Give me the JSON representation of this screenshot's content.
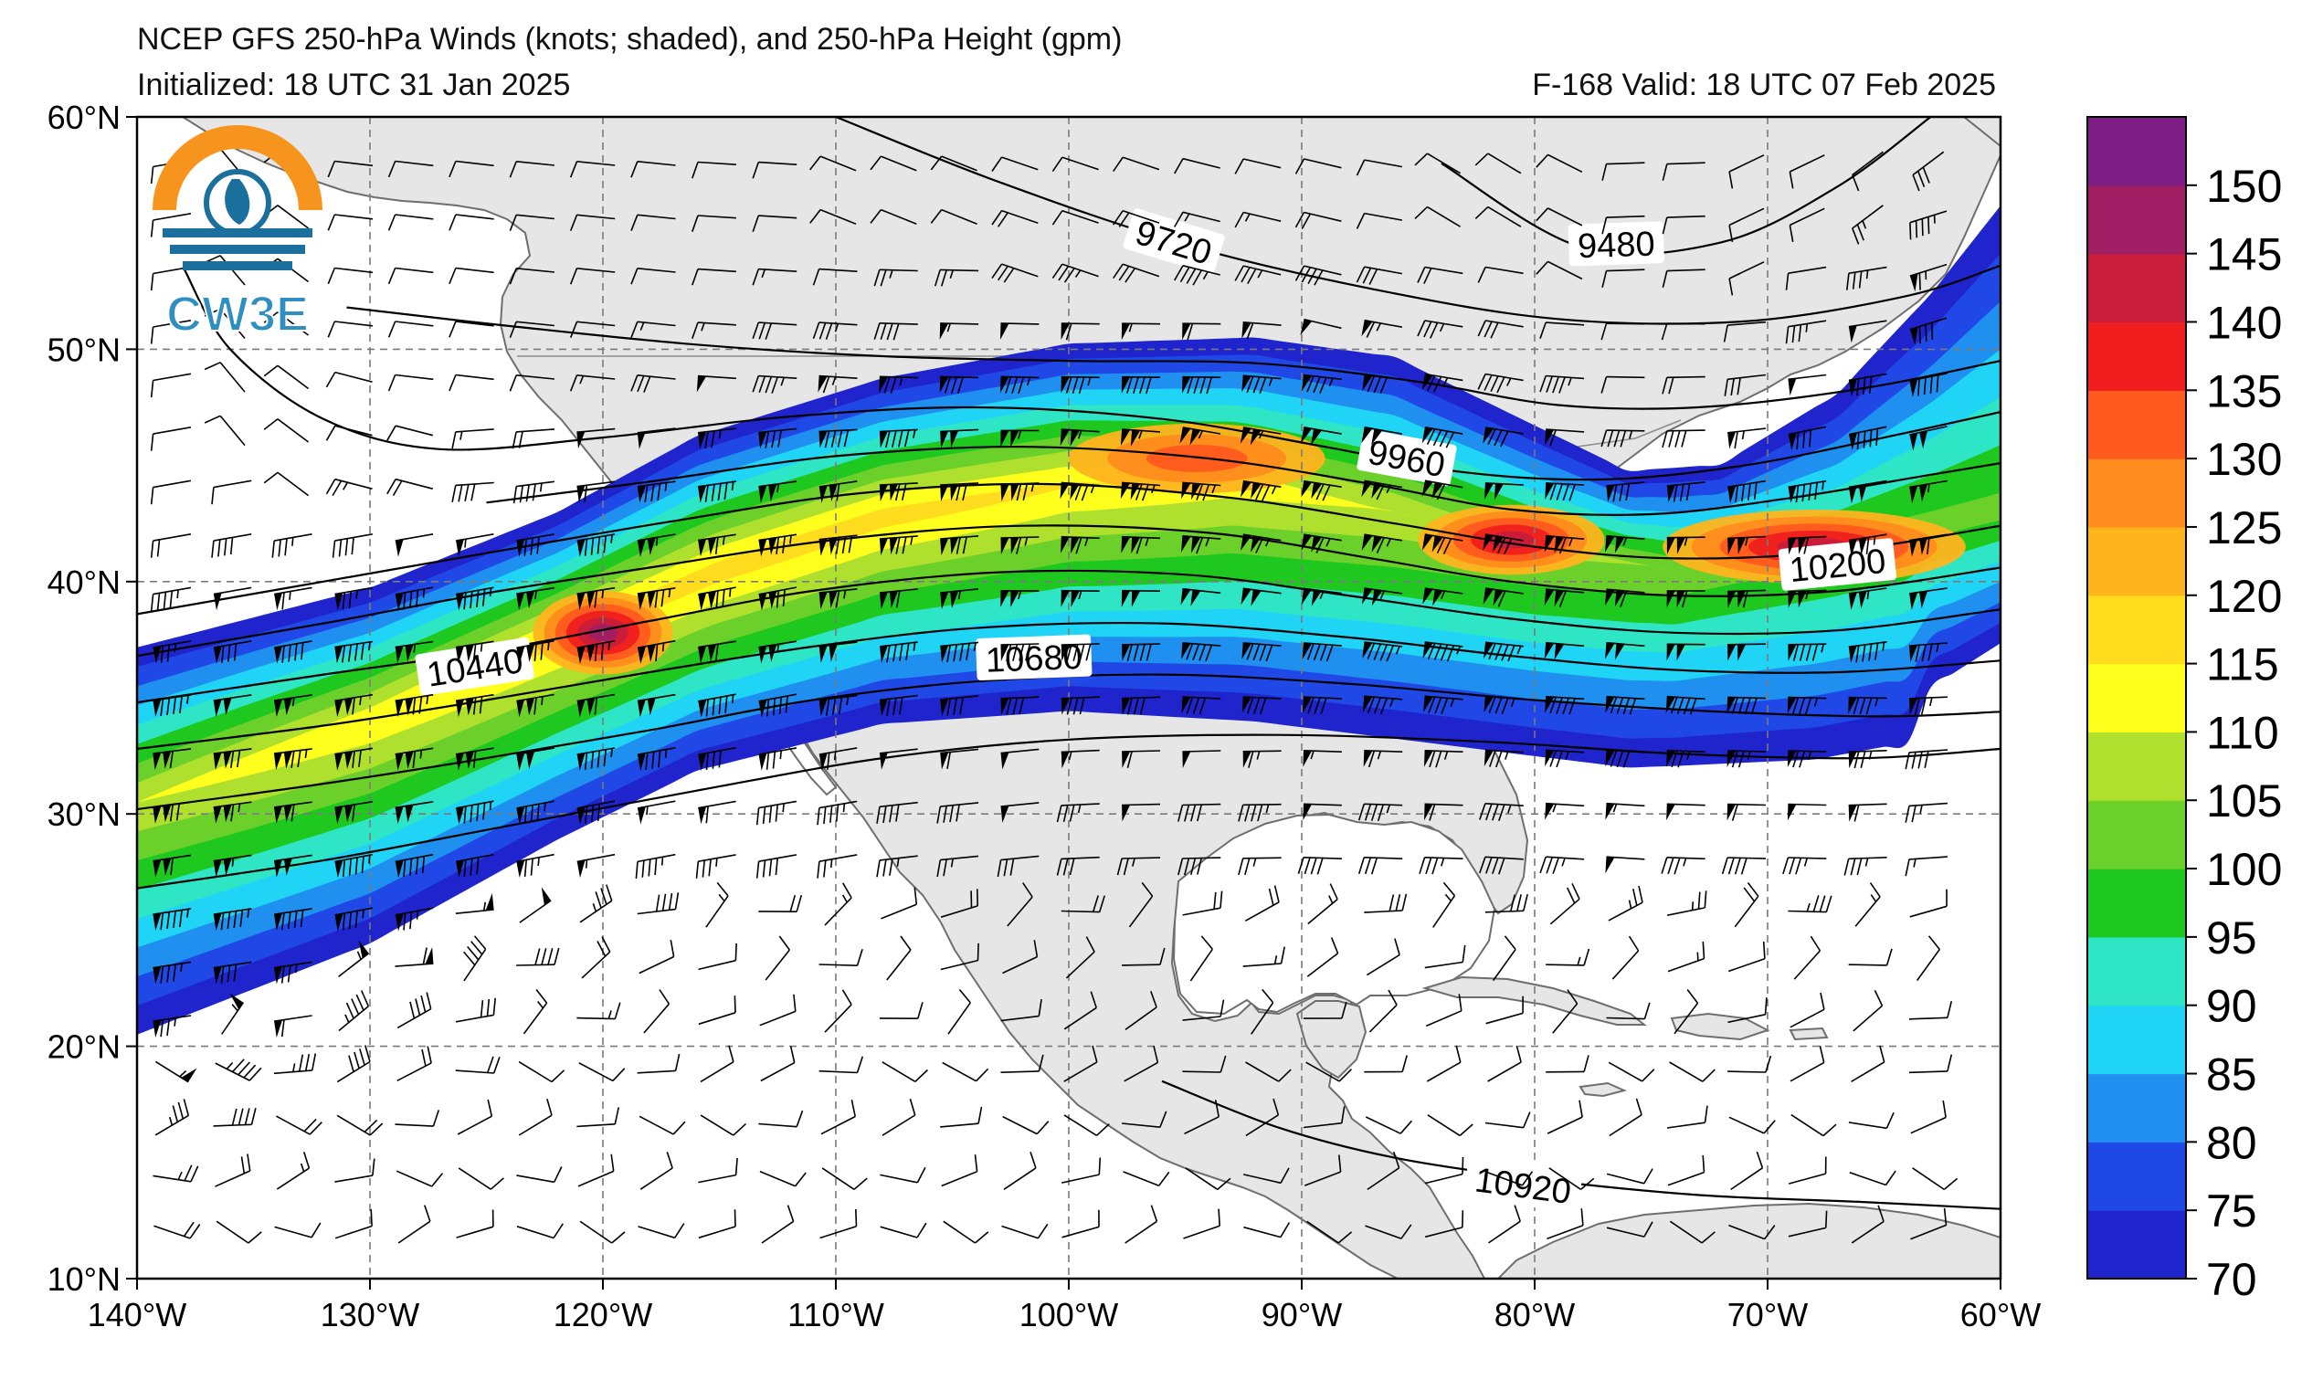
{
  "header": {
    "title": "NCEP GFS 250-hPa Winds (knots; shaded), and 250-hPa Height (gpm)",
    "initialized": "Initialized: 18 UTC 31 Jan 2025",
    "valid": "F-168  Valid: 18 UTC 07 Feb 2025"
  },
  "logo": {
    "text": "CW3E",
    "ring_color": "#f7941d",
    "wave_color": "#1b6f9c",
    "text_color": "#2f8fc0"
  },
  "map": {
    "lon_range": [
      -140,
      -60
    ],
    "lat_range": [
      10,
      60
    ],
    "lon_ticks": [
      {
        "lon": -140,
        "label": "140°W"
      },
      {
        "lon": -130,
        "label": "130°W"
      },
      {
        "lon": -120,
        "label": "120°W"
      },
      {
        "lon": -110,
        "label": "110°W"
      },
      {
        "lon": -100,
        "label": "100°W"
      },
      {
        "lon": -90,
        "label": "90°W"
      },
      {
        "lon": -80,
        "label": "80°W"
      },
      {
        "lon": -70,
        "label": "70°W"
      },
      {
        "lon": -60,
        "label": "60°W"
      }
    ],
    "lat_ticks": [
      {
        "lat": 60,
        "label": "60°N"
      },
      {
        "lat": 50,
        "label": "50°N"
      },
      {
        "lat": 40,
        "label": "40°N"
      },
      {
        "lat": 30,
        "label": "30°N"
      },
      {
        "lat": 20,
        "label": "20°N"
      },
      {
        "lat": 10,
        "label": "10°N"
      }
    ],
    "land_color": "#e6e6e6",
    "coast_color": "#6e6e6e",
    "grid": "dashed"
  },
  "colorbar": {
    "levels": [
      70,
      75,
      80,
      85,
      90,
      95,
      100,
      105,
      110,
      115,
      120,
      125,
      130,
      135,
      140,
      145,
      150,
      155
    ],
    "labels": [
      "70",
      "75",
      "80",
      "85",
      "90",
      "95",
      "100",
      "105",
      "110",
      "115",
      "120",
      "125",
      "130",
      "135",
      "140",
      "145",
      "150"
    ],
    "colors": [
      "#1f24cc",
      "#1f48e6",
      "#1f8ff0",
      "#1fd4f5",
      "#2ee6c6",
      "#1ec81e",
      "#6bd12a",
      "#b0e02e",
      "#ffff1e",
      "#ffdc1e",
      "#ffb41e",
      "#ff8c1e",
      "#ff5a1e",
      "#f01e1e",
      "#c81e3c",
      "#a01e64",
      "#7d1e87"
    ]
  },
  "jet_axis": [
    {
      "lon": -140,
      "lat": 30.5
    },
    {
      "lon": -130,
      "lat": 34.0
    },
    {
      "lon": -122,
      "lat": 37.5
    },
    {
      "lon": -115,
      "lat": 40.5
    },
    {
      "lon": -108,
      "lat": 42.8
    },
    {
      "lon": -100,
      "lat": 44.2
    },
    {
      "lon": -93,
      "lat": 44.3
    },
    {
      "lon": -86,
      "lat": 43.0
    },
    {
      "lon": -80,
      "lat": 41.5
    },
    {
      "lon": -74,
      "lat": 40.5
    },
    {
      "lon": -67,
      "lat": 41.5
    },
    {
      "lon": -60,
      "lat": 43.0
    }
  ],
  "jet_north_edge": [
    {
      "lon": -140,
      "lat": 37.5
    },
    {
      "lon": -130,
      "lat": 40.0
    },
    {
      "lon": -122,
      "lat": 43.2
    },
    {
      "lon": -116,
      "lat": 46.5
    },
    {
      "lon": -108,
      "lat": 49.0
    },
    {
      "lon": -100,
      "lat": 50.5
    },
    {
      "lon": -92,
      "lat": 50.8
    },
    {
      "lon": -86,
      "lat": 50.0
    },
    {
      "lon": -80,
      "lat": 47.0
    },
    {
      "lon": -76,
      "lat": 45.0
    },
    {
      "lon": -72,
      "lat": 45.3
    },
    {
      "lon": -67,
      "lat": 48.5
    },
    {
      "lon": -63,
      "lat": 53.0
    },
    {
      "lon": -60,
      "lat": 57.0
    }
  ],
  "jet_south_edge": [
    {
      "lon": -140,
      "lat": 20.0
    },
    {
      "lon": -130,
      "lat": 24.0
    },
    {
      "lon": -122,
      "lat": 28.5
    },
    {
      "lon": -116,
      "lat": 31.5
    },
    {
      "lon": -108,
      "lat": 33.5
    },
    {
      "lon": -100,
      "lat": 34.0
    },
    {
      "lon": -92,
      "lat": 33.5
    },
    {
      "lon": -84,
      "lat": 32.5
    },
    {
      "lon": -76,
      "lat": 31.5
    },
    {
      "lon": -68,
      "lat": 31.8
    },
    {
      "lon": -64,
      "lat": 32.5
    },
    {
      "lon": -63,
      "lat": 35.0
    },
    {
      "lon": -60,
      "lat": 37.0
    }
  ],
  "wind_maxima": [
    {
      "lon": -120,
      "lat": 37.8,
      "rx": 3.0,
      "ry": 1.8,
      "speed": 145
    },
    {
      "lon": -94.5,
      "lat": 45.3,
      "rx": 5.5,
      "ry": 1.5,
      "speed": 130
    },
    {
      "lon": -81,
      "lat": 41.8,
      "rx": 4.0,
      "ry": 1.5,
      "speed": 140
    },
    {
      "lon": -68,
      "lat": 41.5,
      "rx": 6.5,
      "ry": 1.6,
      "speed": 140
    }
  ],
  "height_contours": [
    {
      "value": 9480,
      "label": "9480",
      "label_at": {
        "lon": -76.5,
        "lat": 54.5
      },
      "points": [
        {
          "lon": -84,
          "lat": 58
        },
        {
          "lon": -78,
          "lat": 54.4
        },
        {
          "lon": -72,
          "lat": 54.6
        },
        {
          "lon": -67,
          "lat": 57.0
        },
        {
          "lon": -63,
          "lat": 60
        }
      ]
    },
    {
      "value": 9720,
      "label": "9720",
      "label_at": {
        "lon": -95.5,
        "lat": 54.6
      },
      "points": [
        {
          "lon": -110,
          "lat": 60
        },
        {
          "lon": -103,
          "lat": 57.2
        },
        {
          "lon": -95,
          "lat": 54.5
        },
        {
          "lon": -87,
          "lat": 52.6
        },
        {
          "lon": -79,
          "lat": 51.3
        },
        {
          "lon": -71,
          "lat": 51.2
        },
        {
          "lon": -64,
          "lat": 52.3
        },
        {
          "lon": -60,
          "lat": 53.6
        }
      ]
    },
    {
      "value": 9840,
      "label": "",
      "points": [
        {
          "lon": -131,
          "lat": 51.8
        },
        {
          "lon": -124,
          "lat": 51.0
        },
        {
          "lon": -116,
          "lat": 50.2
        },
        {
          "lon": -108,
          "lat": 49.7
        },
        {
          "lon": -100,
          "lat": 49.5
        },
        {
          "lon": -92,
          "lat": 49.4
        },
        {
          "lon": -85,
          "lat": 48.6
        },
        {
          "lon": -79,
          "lat": 47.6
        },
        {
          "lon": -73,
          "lat": 47.5
        },
        {
          "lon": -66,
          "lat": 48.3
        },
        {
          "lon": -60,
          "lat": 49.5
        }
      ]
    },
    {
      "value": 9960,
      "label": "9960",
      "label_at": {
        "lon": -85.5,
        "lat": 45.3
      },
      "points": [
        {
          "lon": -138,
          "lat": 53.5
        },
        {
          "lon": -136,
          "lat": 50.0
        },
        {
          "lon": -132,
          "lat": 47.0
        },
        {
          "lon": -127,
          "lat": 45.7
        },
        {
          "lon": -120,
          "lat": 46.2
        },
        {
          "lon": -112,
          "lat": 47.1
        },
        {
          "lon": -104,
          "lat": 47.5
        },
        {
          "lon": -96,
          "lat": 47.0
        },
        {
          "lon": -89,
          "lat": 45.8
        },
        {
          "lon": -83,
          "lat": 44.7
        },
        {
          "lon": -77,
          "lat": 44.4
        },
        {
          "lon": -71,
          "lat": 45.0
        },
        {
          "lon": -65,
          "lat": 46.2
        },
        {
          "lon": -60,
          "lat": 47.3
        }
      ]
    },
    {
      "value": 10080,
      "label": "",
      "points": [
        {
          "lon": -125,
          "lat": 43.4
        },
        {
          "lon": -118,
          "lat": 44.3
        },
        {
          "lon": -110,
          "lat": 45.4
        },
        {
          "lon": -102,
          "lat": 45.8
        },
        {
          "lon": -94,
          "lat": 45.3
        },
        {
          "lon": -87,
          "lat": 44.2
        },
        {
          "lon": -81,
          "lat": 43.1
        },
        {
          "lon": -75,
          "lat": 42.9
        },
        {
          "lon": -69,
          "lat": 43.6
        },
        {
          "lon": -63,
          "lat": 44.6
        },
        {
          "lon": -60,
          "lat": 45.1
        }
      ]
    },
    {
      "value": 10200,
      "label": "10200",
      "label_at": {
        "lon": -67,
        "lat": 40.7
      },
      "points": [
        {
          "lon": -140,
          "lat": 38.6
        },
        {
          "lon": -132,
          "lat": 40.0
        },
        {
          "lon": -124,
          "lat": 41.4
        },
        {
          "lon": -117,
          "lat": 42.6
        },
        {
          "lon": -109,
          "lat": 43.8
        },
        {
          "lon": -101,
          "lat": 44.2
        },
        {
          "lon": -93,
          "lat": 43.6
        },
        {
          "lon": -86,
          "lat": 42.5
        },
        {
          "lon": -80,
          "lat": 41.5
        },
        {
          "lon": -74,
          "lat": 41.0
        },
        {
          "lon": -67,
          "lat": 41.3
        },
        {
          "lon": -60,
          "lat": 42.4
        }
      ]
    },
    {
      "value": 10320,
      "label": "",
      "points": [
        {
          "lon": -140,
          "lat": 36.8
        },
        {
          "lon": -132,
          "lat": 38.2
        },
        {
          "lon": -125,
          "lat": 39.5
        },
        {
          "lon": -118,
          "lat": 40.6
        },
        {
          "lon": -110,
          "lat": 41.8
        },
        {
          "lon": -102,
          "lat": 42.4
        },
        {
          "lon": -94,
          "lat": 42.1
        },
        {
          "lon": -87,
          "lat": 41.0
        },
        {
          "lon": -81,
          "lat": 40.0
        },
        {
          "lon": -74,
          "lat": 39.4
        },
        {
          "lon": -67,
          "lat": 39.6
        },
        {
          "lon": -60,
          "lat": 40.6
        }
      ]
    },
    {
      "value": 10440,
      "label": "10440",
      "label_at": {
        "lon": -125.5,
        "lat": 36.3
      },
      "points": [
        {
          "lon": -140,
          "lat": 34.8
        },
        {
          "lon": -132,
          "lat": 36.0
        },
        {
          "lon": -125,
          "lat": 37.0
        },
        {
          "lon": -118,
          "lat": 38.3
        },
        {
          "lon": -111,
          "lat": 39.6
        },
        {
          "lon": -103,
          "lat": 40.4
        },
        {
          "lon": -95,
          "lat": 40.3
        },
        {
          "lon": -88,
          "lat": 39.4
        },
        {
          "lon": -81,
          "lat": 38.4
        },
        {
          "lon": -74,
          "lat": 37.8
        },
        {
          "lon": -67,
          "lat": 37.9
        },
        {
          "lon": -60,
          "lat": 38.8
        }
      ]
    },
    {
      "value": 10560,
      "label": "",
      "points": [
        {
          "lon": -140,
          "lat": 32.8
        },
        {
          "lon": -132,
          "lat": 33.8
        },
        {
          "lon": -125,
          "lat": 34.9
        },
        {
          "lon": -118,
          "lat": 36.1
        },
        {
          "lon": -111,
          "lat": 37.2
        },
        {
          "lon": -104,
          "lat": 38.0
        },
        {
          "lon": -96,
          "lat": 38.2
        },
        {
          "lon": -88,
          "lat": 37.6
        },
        {
          "lon": -81,
          "lat": 36.8
        },
        {
          "lon": -74,
          "lat": 36.2
        },
        {
          "lon": -67,
          "lat": 36.1
        },
        {
          "lon": -60,
          "lat": 36.6
        }
      ]
    },
    {
      "value": 10680,
      "label": "10680",
      "label_at": {
        "lon": -101.5,
        "lat": 36.7
      },
      "points": [
        {
          "lon": -140,
          "lat": 30.2
        },
        {
          "lon": -132,
          "lat": 31.3
        },
        {
          "lon": -125,
          "lat": 32.4
        },
        {
          "lon": -118,
          "lat": 33.6
        },
        {
          "lon": -111,
          "lat": 34.9
        },
        {
          "lon": -104,
          "lat": 35.7
        },
        {
          "lon": -96,
          "lat": 36.0
        },
        {
          "lon": -88,
          "lat": 35.6
        },
        {
          "lon": -80,
          "lat": 34.9
        },
        {
          "lon": -72,
          "lat": 34.4
        },
        {
          "lon": -65,
          "lat": 34.2
        },
        {
          "lon": -60,
          "lat": 34.4
        }
      ]
    },
    {
      "value": 10800,
      "label": "",
      "points": [
        {
          "lon": -140,
          "lat": 26.8
        },
        {
          "lon": -132,
          "lat": 28.0
        },
        {
          "lon": -124,
          "lat": 29.5
        },
        {
          "lon": -116,
          "lat": 31.0
        },
        {
          "lon": -108,
          "lat": 32.4
        },
        {
          "lon": -100,
          "lat": 33.2
        },
        {
          "lon": -91,
          "lat": 33.4
        },
        {
          "lon": -82,
          "lat": 33.1
        },
        {
          "lon": -74,
          "lat": 32.6
        },
        {
          "lon": -66,
          "lat": 32.4
        },
        {
          "lon": -60,
          "lat": 32.8
        }
      ]
    },
    {
      "value": 10920,
      "label": "10920",
      "label_at": {
        "lon": -80.5,
        "lat": 14.0
      },
      "points": [
        {
          "lon": -96,
          "lat": 18.5
        },
        {
          "lon": -91,
          "lat": 16.5
        },
        {
          "lon": -86,
          "lat": 15.2
        },
        {
          "lon": -80,
          "lat": 14.3
        },
        {
          "lon": -73,
          "lat": 13.6
        },
        {
          "lon": -66,
          "lat": 13.3
        },
        {
          "lon": -60,
          "lat": 13.0
        }
      ]
    }
  ]
}
